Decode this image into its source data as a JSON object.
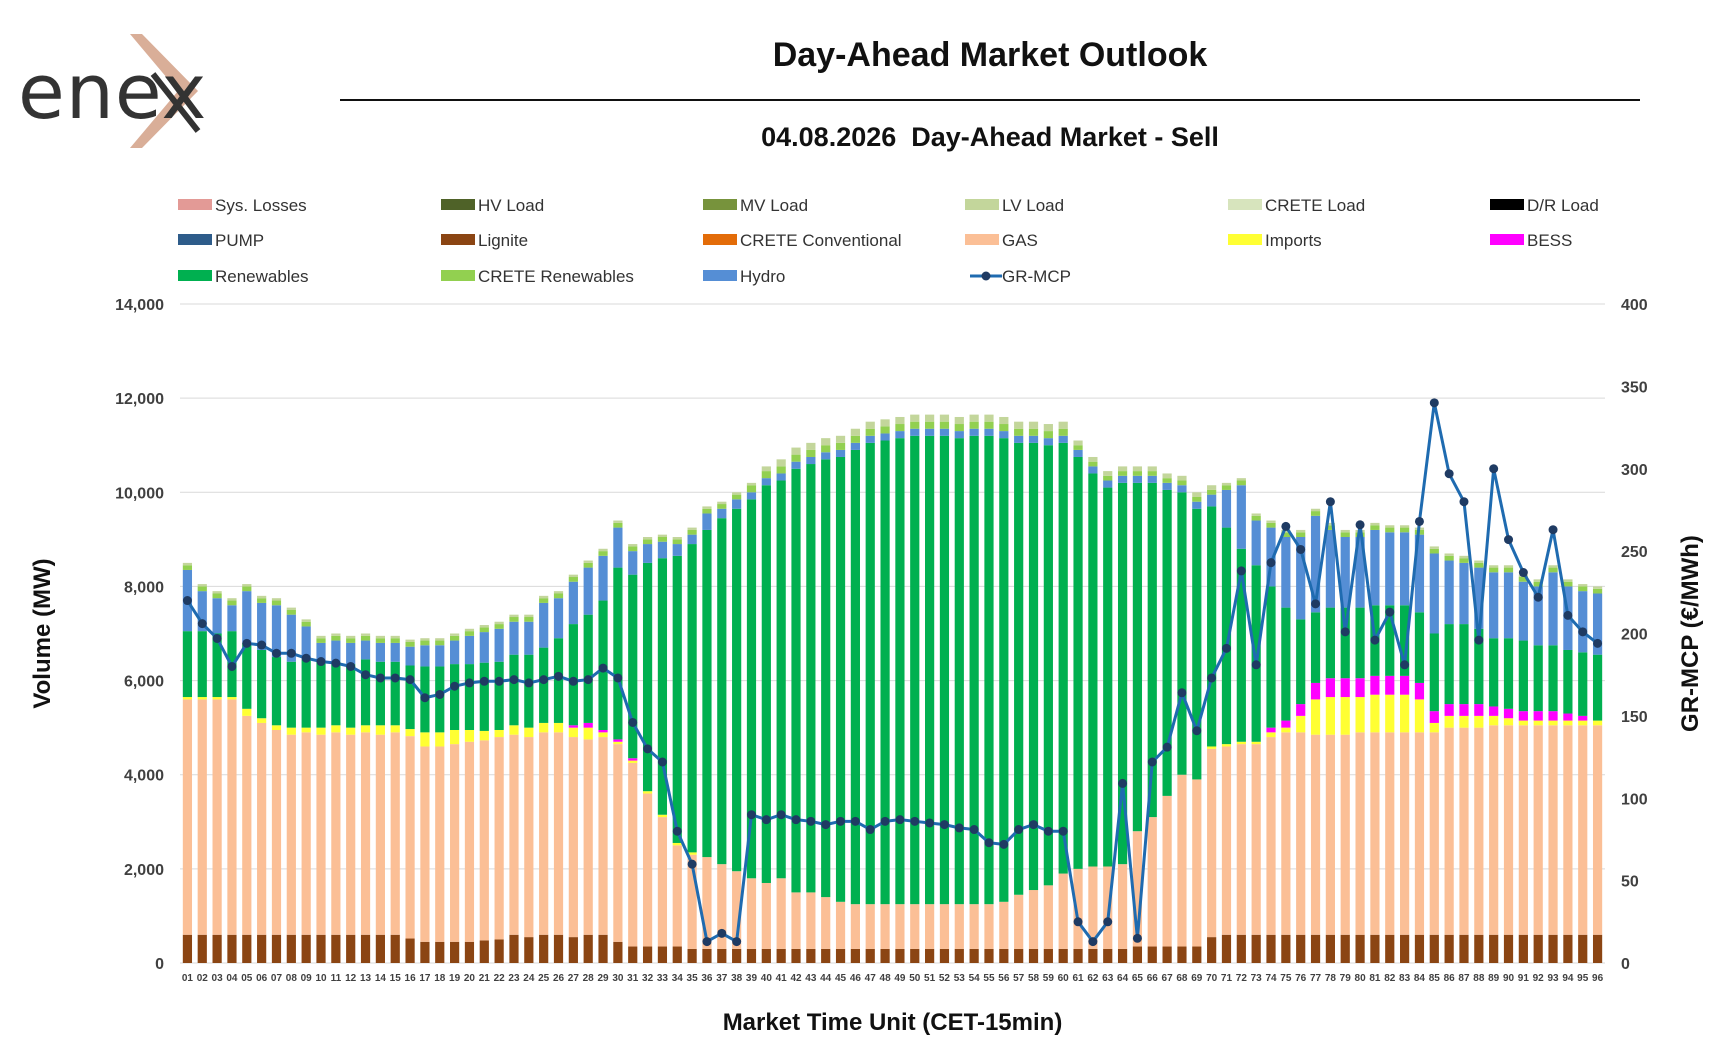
{
  "header": {
    "logo_text": "enex",
    "title": "Day-Ahead Market Outlook",
    "subtitle": "04.08.2026  Day-Ahead Market - Sell"
  },
  "chart_data": {
    "type": "bar",
    "stacked": true,
    "xlabel": "Market Time Unit (CET-15min)",
    "ylabel": "Volume (MW)",
    "y2label": "GR-MCP (€/MWh)",
    "ylim": [
      0,
      14000
    ],
    "y2lim": [
      0,
      400
    ],
    "y_ticks": [
      "0",
      "2,000",
      "4,000",
      "6,000",
      "8,000",
      "10,000",
      "12,000",
      "14,000"
    ],
    "y2_ticks": [
      "0",
      "50",
      "100",
      "150",
      "200",
      "250",
      "300",
      "350",
      "400"
    ],
    "grid": true,
    "legend_position": "top",
    "categories": [
      "01",
      "02",
      "03",
      "04",
      "05",
      "06",
      "07",
      "08",
      "09",
      "10",
      "11",
      "12",
      "13",
      "14",
      "15",
      "16",
      "17",
      "18",
      "19",
      "20",
      "21",
      "22",
      "23",
      "24",
      "25",
      "26",
      "27",
      "28",
      "29",
      "30",
      "31",
      "32",
      "33",
      "34",
      "35",
      "36",
      "37",
      "38",
      "39",
      "40",
      "41",
      "42",
      "43",
      "44",
      "45",
      "46",
      "47",
      "48",
      "49",
      "50",
      "51",
      "52",
      "53",
      "54",
      "55",
      "56",
      "57",
      "58",
      "59",
      "60",
      "61",
      "62",
      "63",
      "64",
      "65",
      "66",
      "67",
      "68",
      "69",
      "70",
      "71",
      "72",
      "73",
      "74",
      "75",
      "76",
      "77",
      "78",
      "79",
      "80",
      "81",
      "82",
      "83",
      "84",
      "85",
      "86",
      "87",
      "88",
      "89",
      "90",
      "91",
      "92",
      "93",
      "94",
      "95",
      "96"
    ],
    "legend": [
      {
        "name": "Sys. Losses",
        "color": "#E39A96",
        "kind": "box"
      },
      {
        "name": "HV Load",
        "color": "#4F6228",
        "kind": "box"
      },
      {
        "name": "MV Load",
        "color": "#77933C",
        "kind": "box"
      },
      {
        "name": "LV Load",
        "color": "#C3D69B",
        "kind": "box"
      },
      {
        "name": "CRETE Load",
        "color": "#D7E4BD",
        "kind": "box"
      },
      {
        "name": "D/R Load",
        "color": "#000000",
        "kind": "box"
      },
      {
        "name": "PUMP",
        "color": "#2E5C8A",
        "kind": "box"
      },
      {
        "name": "Lignite",
        "color": "#8B4513",
        "kind": "box"
      },
      {
        "name": "CRETE Conventional",
        "color": "#E36C09",
        "kind": "box"
      },
      {
        "name": "GAS",
        "color": "#FBBF96",
        "kind": "box"
      },
      {
        "name": "Imports",
        "color": "#FFFF33",
        "kind": "box"
      },
      {
        "name": "BESS",
        "color": "#FF00FF",
        "kind": "box"
      },
      {
        "name": "Renewables",
        "color": "#00B050",
        "kind": "box"
      },
      {
        "name": "CRETE Renewables",
        "color": "#92D050",
        "kind": "box"
      },
      {
        "name": "Hydro",
        "color": "#558ED5",
        "kind": "box"
      },
      {
        "name": "GR-MCP",
        "color": "#1F6BB0",
        "kind": "line"
      }
    ],
    "series": [
      {
        "name": "Lignite",
        "color": "#8B4513",
        "values": [
          600,
          600,
          600,
          600,
          600,
          600,
          600,
          600,
          600,
          600,
          600,
          600,
          600,
          600,
          600,
          520,
          450,
          450,
          450,
          450,
          480,
          500,
          600,
          550,
          600,
          600,
          550,
          600,
          600,
          450,
          350,
          350,
          350,
          350,
          300,
          300,
          300,
          300,
          300,
          300,
          300,
          300,
          300,
          300,
          300,
          300,
          300,
          300,
          300,
          300,
          300,
          300,
          300,
          300,
          300,
          300,
          300,
          300,
          300,
          300,
          300,
          300,
          300,
          300,
          350,
          350,
          350,
          350,
          350,
          550,
          600,
          600,
          600,
          600,
          600,
          600,
          600,
          600,
          600,
          600,
          600,
          600,
          600,
          600,
          600,
          600,
          600,
          600,
          600,
          600,
          600,
          600,
          600,
          600,
          600,
          600
        ]
      },
      {
        "name": "GAS",
        "color": "#FBBF96",
        "values": [
          5000,
          5000,
          5000,
          5000,
          4650,
          4500,
          4350,
          4250,
          4300,
          4250,
          4300,
          4250,
          4300,
          4250,
          4300,
          4300,
          4150,
          4150,
          4200,
          4250,
          4250,
          4300,
          4250,
          4250,
          4300,
          4300,
          4250,
          4150,
          4200,
          4200,
          3900,
          3250,
          2750,
          2150,
          2000,
          1950,
          1800,
          1650,
          1500,
          1400,
          1500,
          1200,
          1200,
          1100,
          1000,
          950,
          950,
          950,
          950,
          950,
          950,
          950,
          950,
          950,
          950,
          1000,
          1150,
          1250,
          1350,
          1600,
          1700,
          1750,
          1750,
          1800,
          2450,
          2750,
          3200,
          3650,
          3550,
          4000,
          4000,
          4050,
          4050,
          4200,
          4300,
          4300,
          4250,
          4250,
          4250,
          4300,
          4300,
          4300,
          4300,
          4300,
          4300,
          4400,
          4400,
          4400,
          4450,
          4450,
          4450,
          4450,
          4450,
          4450,
          4450,
          4450
        ]
      },
      {
        "name": "Imports",
        "color": "#FFFF33",
        "values": [
          50,
          50,
          50,
          50,
          150,
          100,
          100,
          150,
          100,
          150,
          150,
          150,
          150,
          200,
          150,
          150,
          300,
          300,
          300,
          250,
          200,
          150,
          200,
          200,
          200,
          200,
          200,
          250,
          100,
          50,
          50,
          50,
          50,
          50,
          50,
          0,
          0,
          0,
          0,
          0,
          0,
          0,
          0,
          0,
          0,
          0,
          0,
          0,
          0,
          0,
          0,
          0,
          0,
          0,
          0,
          0,
          0,
          0,
          0,
          0,
          0,
          0,
          0,
          0,
          0,
          0,
          0,
          0,
          0,
          50,
          50,
          50,
          50,
          100,
          100,
          350,
          750,
          800,
          800,
          750,
          800,
          800,
          800,
          700,
          200,
          250,
          250,
          250,
          200,
          150,
          100,
          100,
          100,
          100,
          100,
          100
        ]
      },
      {
        "name": "BESS",
        "color": "#FF00FF",
        "values": [
          0,
          0,
          0,
          0,
          0,
          0,
          0,
          0,
          0,
          0,
          0,
          0,
          0,
          0,
          0,
          0,
          0,
          0,
          0,
          0,
          0,
          0,
          0,
          0,
          0,
          0,
          50,
          100,
          50,
          50,
          50,
          0,
          0,
          0,
          0,
          0,
          0,
          0,
          0,
          0,
          0,
          0,
          0,
          0,
          0,
          0,
          0,
          0,
          0,
          0,
          0,
          0,
          0,
          0,
          0,
          0,
          0,
          0,
          0,
          0,
          0,
          0,
          0,
          0,
          0,
          0,
          0,
          0,
          0,
          0,
          0,
          0,
          0,
          100,
          150,
          250,
          350,
          400,
          400,
          400,
          400,
          400,
          400,
          350,
          250,
          250,
          250,
          250,
          200,
          200,
          200,
          200,
          200,
          150,
          100,
          0
        ]
      },
      {
        "name": "Renewables",
        "color": "#00B050",
        "values": [
          1400,
          1400,
          1350,
          1400,
          1400,
          1450,
          1450,
          1400,
          1450,
          1400,
          1350,
          1350,
          1400,
          1350,
          1350,
          1350,
          1400,
          1400,
          1400,
          1400,
          1450,
          1450,
          1500,
          1550,
          1600,
          1800,
          2150,
          2300,
          2750,
          3650,
          3900,
          4850,
          5450,
          6100,
          6550,
          6950,
          7350,
          7700,
          8050,
          8450,
          8450,
          9000,
          9100,
          9300,
          9450,
          9650,
          9800,
          9850,
          9900,
          9950,
          9950,
          9950,
          9900,
          9950,
          9950,
          9850,
          9600,
          9500,
          9350,
          9150,
          8750,
          8350,
          8050,
          8100,
          7400,
          7100,
          6500,
          6000,
          5750,
          5100,
          4600,
          4100,
          3750,
          3000,
          2400,
          1800,
          1500,
          1500,
          1500,
          1500,
          1500,
          1500,
          1500,
          1500,
          1650,
          1700,
          1700,
          1600,
          1450,
          1500,
          1500,
          1400,
          1400,
          1350,
          1350,
          1400
        ]
      },
      {
        "name": "Hydro",
        "color": "#558ED5",
        "values": [
          1300,
          850,
          750,
          550,
          1100,
          1000,
          1100,
          1000,
          700,
          400,
          450,
          450,
          400,
          400,
          400,
          400,
          450,
          450,
          500,
          600,
          650,
          700,
          700,
          700,
          950,
          850,
          900,
          1000,
          950,
          850,
          500,
          400,
          350,
          250,
          200,
          350,
          200,
          200,
          150,
          150,
          150,
          150,
          150,
          150,
          150,
          150,
          150,
          150,
          150,
          150,
          150,
          150,
          150,
          150,
          150,
          150,
          150,
          150,
          150,
          150,
          150,
          150,
          150,
          150,
          150,
          150,
          150,
          150,
          150,
          250,
          800,
          1350,
          950,
          1250,
          1500,
          1750,
          2050,
          1650,
          1500,
          1500,
          1600,
          1550,
          1550,
          1650,
          1700,
          1350,
          1300,
          1300,
          1400,
          1400,
          1250,
          1250,
          1550,
          1350,
          1300,
          1300
        ]
      },
      {
        "name": "CRETE Renewables",
        "color": "#92D050",
        "values": [
          100,
          100,
          100,
          100,
          100,
          100,
          100,
          100,
          100,
          100,
          100,
          100,
          100,
          100,
          100,
          100,
          100,
          100,
          100,
          100,
          100,
          100,
          100,
          100,
          100,
          100,
          100,
          100,
          100,
          100,
          100,
          100,
          100,
          100,
          100,
          100,
          100,
          100,
          150,
          150,
          150,
          150,
          150,
          150,
          150,
          150,
          150,
          150,
          150,
          150,
          150,
          150,
          150,
          150,
          150,
          150,
          150,
          150,
          150,
          150,
          100,
          100,
          100,
          100,
          100,
          100,
          100,
          100,
          100,
          100,
          100,
          100,
          100,
          100,
          100,
          100,
          100,
          100,
          100,
          100,
          100,
          100,
          100,
          100,
          100,
          100,
          100,
          100,
          100,
          100,
          100,
          100,
          100,
          100,
          100,
          100
        ]
      },
      {
        "name": "LV Load",
        "color": "#C3D69B",
        "values": [
          50,
          50,
          50,
          50,
          50,
          50,
          50,
          50,
          50,
          50,
          50,
          50,
          50,
          50,
          50,
          50,
          50,
          50,
          50,
          50,
          50,
          50,
          50,
          50,
          50,
          50,
          50,
          50,
          50,
          50,
          50,
          50,
          50,
          50,
          50,
          50,
          50,
          50,
          50,
          100,
          150,
          150,
          150,
          150,
          150,
          150,
          150,
          150,
          150,
          150,
          150,
          150,
          150,
          150,
          150,
          150,
          150,
          150,
          150,
          150,
          100,
          100,
          100,
          100,
          100,
          100,
          100,
          100,
          100,
          100,
          50,
          50,
          50,
          50,
          50,
          50,
          50,
          50,
          50,
          50,
          50,
          50,
          50,
          50,
          50,
          50,
          50,
          50,
          50,
          50,
          50,
          50,
          50,
          50,
          50,
          50
        ]
      }
    ],
    "gr_mcp": {
      "name": "GR-MCP",
      "color": "#1F6BB0",
      "values": [
        220,
        206,
        197,
        180,
        194,
        193,
        188,
        188,
        185,
        183,
        182,
        180,
        175,
        173,
        173,
        172,
        161,
        163,
        168,
        170,
        171,
        171,
        172,
        170,
        172,
        174,
        171,
        172,
        179,
        173,
        146,
        130,
        122,
        80,
        60,
        13,
        18,
        13,
        90,
        87,
        90,
        87,
        86,
        84,
        86,
        86,
        81,
        86,
        87,
        86,
        85,
        84,
        82,
        81,
        73,
        72,
        81,
        84,
        80,
        80,
        25,
        13,
        25,
        109,
        15,
        122,
        131,
        164,
        141,
        173,
        191,
        238,
        181,
        243,
        265,
        251,
        218,
        280,
        201,
        266,
        196,
        213,
        181,
        268,
        340,
        297,
        280,
        196,
        300,
        257,
        237,
        222,
        263,
        211,
        201,
        194
      ]
    }
  }
}
